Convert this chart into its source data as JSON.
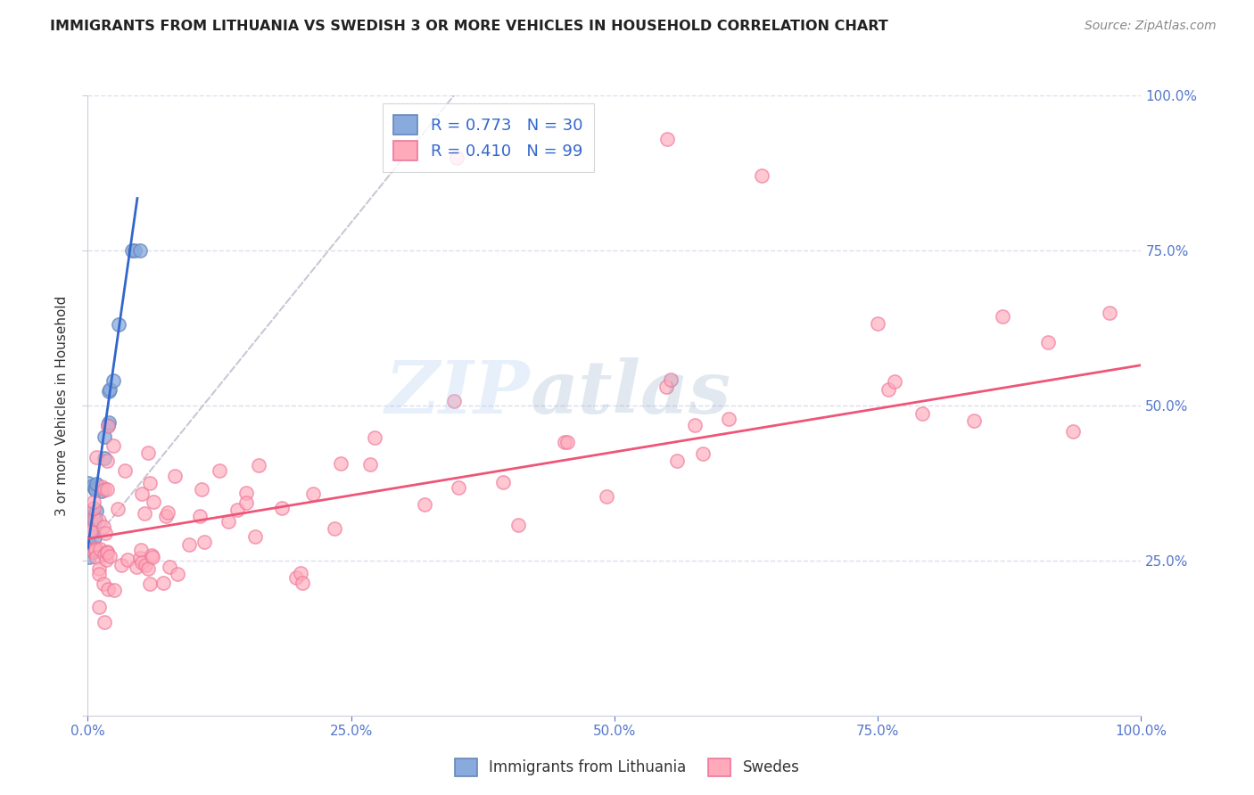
{
  "title": "IMMIGRANTS FROM LITHUANIA VS SWEDISH 3 OR MORE VEHICLES IN HOUSEHOLD CORRELATION CHART",
  "source": "Source: ZipAtlas.com",
  "ylabel": "3 or more Vehicles in Household",
  "xlim": [
    0,
    1.0
  ],
  "ylim": [
    0,
    1.0
  ],
  "xtick_positions": [
    0.0,
    0.25,
    0.5,
    0.75,
    1.0
  ],
  "ytick_positions": [
    0.0,
    0.25,
    0.5,
    0.75,
    1.0
  ],
  "xtick_labels": [
    "0.0%",
    "25.0%",
    "50.0%",
    "75.0%",
    "100.0%"
  ],
  "ytick_labels_right": [
    "",
    "25.0%",
    "50.0%",
    "75.0%",
    "100.0%"
  ],
  "blue_color": "#88AADD",
  "blue_edge_color": "#6688BB",
  "pink_color": "#FFAABB",
  "pink_edge_color": "#EE7799",
  "blue_line_color": "#3366CC",
  "pink_line_color": "#EE5577",
  "diag_line_color": "#BBBBCC",
  "blue_R": 0.773,
  "blue_N": 30,
  "pink_R": 0.41,
  "pink_N": 99,
  "watermark_zip": "ZIP",
  "watermark_atlas": "atlas",
  "legend_label_blue": "Immigrants from Lithuania",
  "legend_label_pink": "Swedes",
  "grid_color": "#DDDDEE",
  "background_color": "#FFFFFF"
}
